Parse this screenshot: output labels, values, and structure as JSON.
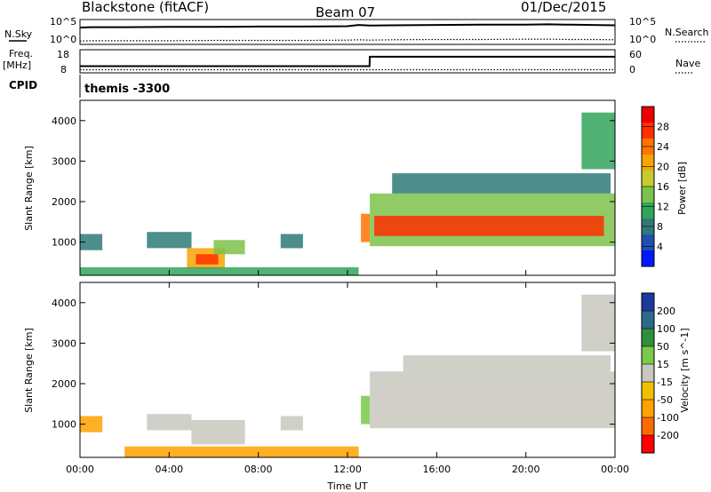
{
  "header": {
    "title": "Blackstone (fitACF)",
    "beam": "Beam 07",
    "date": "01/Dec/2015"
  },
  "colors": {
    "power_bands": [
      "#0018ff",
      "#1f4fb0",
      "#2e7a77",
      "#34a35c",
      "#7cc24a",
      "#c6cc2d",
      "#f6a400",
      "#ff7300",
      "#ff2f00",
      "#ee0000"
    ],
    "velocity_bands": [
      "#ff0000",
      "#ff6a00",
      "#ffa100",
      "#f0c000",
      "#c8c8c0",
      "#79c94a",
      "#2f8f3f",
      "#2c6a8a",
      "#1a3aa0"
    ],
    "gray": "#c8c8c0"
  },
  "chart_data": [
    {
      "type": "line",
      "panel": "noise_sky_search",
      "left_label_top": "N.Sky",
      "left_label_bottom": "",
      "left_ticks": [
        "10^5",
        "10^0"
      ],
      "right_ticks": [
        "10^5",
        "10^0"
      ],
      "right_label": "N.Search",
      "x": [
        0,
        0.5,
        2,
        4,
        6,
        8,
        10,
        12,
        12.5,
        13,
        14,
        16,
        18,
        20,
        21,
        22,
        23,
        24
      ],
      "series": [
        {
          "values": [
            4.8,
            4.9,
            4.9,
            5.0,
            5.0,
            5.1,
            5.1,
            5.2,
            5.6,
            5.4,
            5.5,
            5.6,
            5.7,
            5.7,
            5.8,
            5.7,
            5.6,
            5.5
          ]
        },
        {
          "values": [
            0.5,
            0.6,
            0.6,
            0.6,
            0.7,
            0.7,
            0.7,
            0.8,
            0.9,
            0.8,
            0.9,
            1.0,
            1.0,
            1.1,
            1.1,
            1.0,
            1.0,
            0.9
          ]
        }
      ]
    },
    {
      "type": "line",
      "panel": "frequency_nave",
      "left_label_top": "Freq.",
      "left_label_bottom": "[MHz]",
      "left_ticks": [
        "18",
        "8"
      ],
      "right_ticks": [
        "60",
        "0"
      ],
      "right_label": "Nave",
      "x": [
        0,
        12.99,
        13.0,
        24
      ],
      "series": [
        {
          "values": [
            10.5,
            10.5,
            15.3,
            15.3
          ]
        },
        {
          "values": [
            4,
            4,
            4,
            4
          ]
        }
      ]
    },
    {
      "type": "table",
      "panel": "cpid",
      "label": "CPID",
      "value": "themis -3300"
    },
    {
      "type": "heatmap",
      "panel": "power",
      "ylabel": "Slant Range [km]",
      "colorbar_label": "Power [dB]",
      "colorbar_ticks": [
        "4",
        "8",
        "12",
        "16",
        "20",
        "24",
        "28"
      ],
      "y_ticks": [
        1000,
        2000,
        3000,
        4000
      ],
      "ylim": [
        180,
        4500
      ],
      "regions": [
        {
          "t": [
            0,
            1.0
          ],
          "r": [
            800,
            1200
          ],
          "level": 2
        },
        {
          "t": [
            3.0,
            5.0
          ],
          "r": [
            850,
            1250
          ],
          "level": 2
        },
        {
          "t": [
            4.8,
            6.5
          ],
          "r": [
            350,
            850
          ],
          "level": 6
        },
        {
          "t": [
            5.2,
            6.2
          ],
          "r": [
            450,
            700
          ],
          "level": 8
        },
        {
          "t": [
            6.0,
            7.4
          ],
          "r": [
            700,
            1050
          ],
          "level": 4
        },
        {
          "t": [
            9.0,
            10.0
          ],
          "r": [
            850,
            1200
          ],
          "level": 2
        },
        {
          "t": [
            0,
            12.5
          ],
          "r": [
            180,
            380
          ],
          "level": 3
        },
        {
          "t": [
            12.6,
            13.0
          ],
          "r": [
            1000,
            1700
          ],
          "level": 7
        },
        {
          "t": [
            13.0,
            24
          ],
          "r": [
            900,
            2200
          ],
          "level": 4
        },
        {
          "t": [
            13.2,
            23.5
          ],
          "r": [
            1150,
            1650
          ],
          "level": 8
        },
        {
          "t": [
            14.0,
            23.8
          ],
          "r": [
            2200,
            2700
          ],
          "level": 2
        },
        {
          "t": [
            22.5,
            24
          ],
          "r": [
            2800,
            4200
          ],
          "level": 3
        }
      ]
    },
    {
      "type": "heatmap",
      "panel": "velocity",
      "ylabel": "Slant Range [km]",
      "colorbar_label": "Velocity [m s^-1]",
      "colorbar_ticks": [
        "200",
        "100",
        "50",
        "15",
        "-15",
        "-50",
        "-100",
        "-200"
      ],
      "y_ticks": [
        1000,
        2000,
        3000,
        4000
      ],
      "ylim": [
        180,
        4500
      ],
      "x_ticks": [
        "00:00",
        "04:00",
        "08:00",
        "12:00",
        "16:00",
        "20:00",
        "00:00"
      ],
      "xlabel": "Time UT",
      "regions": [
        {
          "t": [
            0,
            1.0
          ],
          "r": [
            800,
            1200
          ],
          "level": 2
        },
        {
          "t": [
            3.0,
            5.0
          ],
          "r": [
            850,
            1250
          ],
          "level": 4
        },
        {
          "t": [
            5.0,
            7.4
          ],
          "r": [
            500,
            1100
          ],
          "level": 4
        },
        {
          "t": [
            9.0,
            10.0
          ],
          "r": [
            850,
            1200
          ],
          "level": 4
        },
        {
          "t": [
            2.0,
            12.5
          ],
          "r": [
            180,
            450
          ],
          "level": 2
        },
        {
          "t": [
            12.6,
            13.0
          ],
          "r": [
            1000,
            1700
          ],
          "level": 5
        },
        {
          "t": [
            13.0,
            24
          ],
          "r": [
            900,
            2300
          ],
          "level": 4
        },
        {
          "t": [
            14.5,
            23.8
          ],
          "r": [
            2300,
            2700
          ],
          "level": 4
        },
        {
          "t": [
            22.5,
            24
          ],
          "r": [
            2800,
            4200
          ],
          "level": 4
        }
      ]
    }
  ]
}
